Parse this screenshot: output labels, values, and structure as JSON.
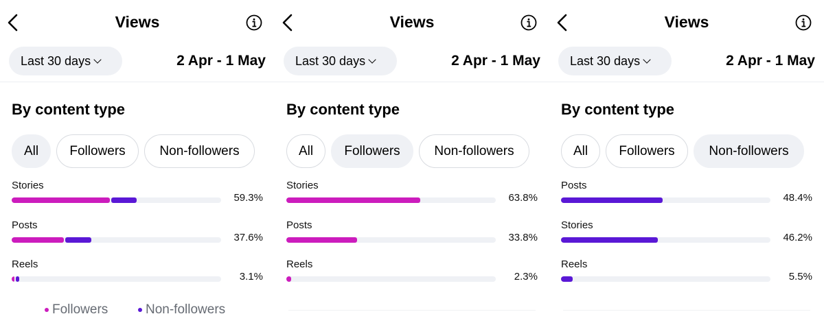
{
  "colors": {
    "followers": "#cc1cbd",
    "non_followers": "#5a18d6",
    "track": "#eff1f5"
  },
  "icons": {
    "back": "chevron-left-icon",
    "info": "info-circle-icon",
    "dropdown": "chevron-down-icon"
  },
  "panels": [
    {
      "title": "Views",
      "period_label": "Last 30 days",
      "date_range": "2 Apr - 1 May",
      "section_title": "By content type",
      "filters": [
        {
          "label": "All",
          "selected": true
        },
        {
          "label": "Followers",
          "selected": false
        },
        {
          "label": "Non-followers",
          "selected": false
        }
      ],
      "rows": [
        {
          "label": "Stories",
          "percent": "59.3%",
          "followers_fraction": 0.47,
          "non_followers_fraction": 0.12
        },
        {
          "label": "Posts",
          "percent": "37.6%",
          "followers_fraction": 0.25,
          "non_followers_fraction": 0.125
        },
        {
          "label": "Reels",
          "percent": "3.1%",
          "followers_fraction": 0.013,
          "non_followers_fraction": 0.018
        }
      ],
      "legend": {
        "followers": "Followers",
        "non_followers": "Non-followers"
      }
    },
    {
      "title": "Views",
      "period_label": "Last 30 days",
      "date_range": "2 Apr - 1 May",
      "section_title": "By content type",
      "filters": [
        {
          "label": "All",
          "selected": false
        },
        {
          "label": "Followers",
          "selected": true
        },
        {
          "label": "Non-followers",
          "selected": false
        }
      ],
      "rows": [
        {
          "label": "Stories",
          "percent": "63.8%",
          "followers_fraction": 0.638,
          "non_followers_fraction": 0
        },
        {
          "label": "Posts",
          "percent": "33.8%",
          "followers_fraction": 0.338,
          "non_followers_fraction": 0
        },
        {
          "label": "Reels",
          "percent": "2.3%",
          "followers_fraction": 0.023,
          "non_followers_fraction": 0
        }
      ]
    },
    {
      "title": "Views",
      "period_label": "Last 30 days",
      "date_range": "2 Apr - 1 May",
      "section_title": "By content type",
      "filters": [
        {
          "label": "All",
          "selected": false
        },
        {
          "label": "Followers",
          "selected": false
        },
        {
          "label": "Non-followers",
          "selected": true
        }
      ],
      "rows": [
        {
          "label": "Posts",
          "percent": "48.4%",
          "followers_fraction": 0,
          "non_followers_fraction": 0.484
        },
        {
          "label": "Stories",
          "percent": "46.2%",
          "followers_fraction": 0,
          "non_followers_fraction": 0.462
        },
        {
          "label": "Reels",
          "percent": "5.5%",
          "followers_fraction": 0,
          "non_followers_fraction": 0.055
        }
      ]
    }
  ]
}
